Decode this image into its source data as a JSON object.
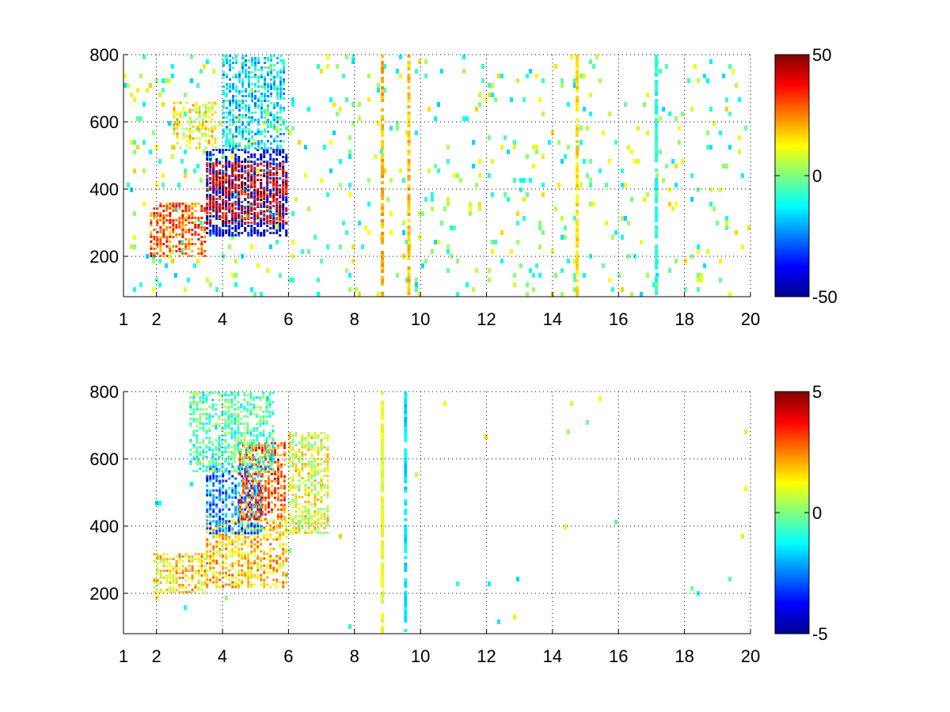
{
  "chart_data": [
    {
      "type": "heatmap",
      "title": "",
      "xlabel": "",
      "ylabel": "",
      "xlim": [
        1,
        20
      ],
      "ylim": [
        80,
        800
      ],
      "x_ticks": [
        1,
        2,
        4,
        6,
        8,
        10,
        12,
        14,
        16,
        18,
        20
      ],
      "y_ticks": [
        200,
        400,
        600,
        800
      ],
      "grid": true,
      "colormap": "jet",
      "colorbar": {
        "range": [
          -50,
          50
        ],
        "ticks": [
          50,
          0,
          -50
        ]
      },
      "regions": [
        {
          "x": [
            1.8,
            3.5
          ],
          "y": [
            200,
            360
          ],
          "value": 28,
          "description": "red/orange band"
        },
        {
          "x": [
            3.5,
            5.9
          ],
          "y": [
            260,
            520
          ],
          "value": -40,
          "description": "blue band"
        },
        {
          "x": [
            3.5,
            5.9
          ],
          "y": [
            300,
            480
          ],
          "value": 40,
          "description": "red streaks"
        },
        {
          "x": [
            2.5,
            3.8
          ],
          "y": [
            520,
            660
          ],
          "value": 12,
          "description": "yellow cluster"
        },
        {
          "x": [
            4.0,
            5.9
          ],
          "y": [
            520,
            800
          ],
          "value": -15,
          "description": "cyan band"
        },
        {
          "x": [
            1.0,
            20.0
          ],
          "y": [
            80,
            800
          ],
          "value": 2,
          "description": "sparse green/yellow noise"
        }
      ],
      "stripes": [
        {
          "x": 8.8,
          "value": 20
        },
        {
          "x": 9.6,
          "value": 18
        },
        {
          "x": 14.7,
          "value": 15
        },
        {
          "x": 17.1,
          "value": -10
        }
      ]
    },
    {
      "type": "heatmap",
      "title": "",
      "xlabel": "",
      "ylabel": "",
      "xlim": [
        1,
        20
      ],
      "ylim": [
        80,
        800
      ],
      "x_ticks": [
        1,
        2,
        4,
        6,
        8,
        10,
        12,
        14,
        16,
        18,
        20
      ],
      "y_ticks": [
        200,
        400,
        600,
        800
      ],
      "grid": true,
      "colormap": "jet",
      "colorbar": {
        "range": [
          -5,
          5
        ],
        "ticks": [
          5,
          0,
          -5
        ]
      },
      "regions": [
        {
          "x": [
            1.9,
            3.5
          ],
          "y": [
            200,
            320
          ],
          "value": 1.5,
          "description": "yellow band"
        },
        {
          "x": [
            3.5,
            5.9
          ],
          "y": [
            220,
            420
          ],
          "value": 1.8,
          "description": "yellow/orange band"
        },
        {
          "x": [
            3.5,
            5.2
          ],
          "y": [
            380,
            580
          ],
          "value": -2.5,
          "description": "blue/cyan band"
        },
        {
          "x": [
            4.5,
            5.9
          ],
          "y": [
            420,
            650
          ],
          "value": 3.0,
          "description": "red/orange band"
        },
        {
          "x": [
            3.0,
            5.5
          ],
          "y": [
            560,
            800
          ],
          "value": -0.5,
          "description": "cyan/green band"
        },
        {
          "x": [
            6.0,
            7.2
          ],
          "y": [
            380,
            680
          ],
          "value": 1.0,
          "description": "scattered mixed pixels"
        }
      ],
      "stripes": [
        {
          "x": 8.8,
          "value": 1.0
        },
        {
          "x": 9.5,
          "value": -1.5
        }
      ]
    }
  ]
}
